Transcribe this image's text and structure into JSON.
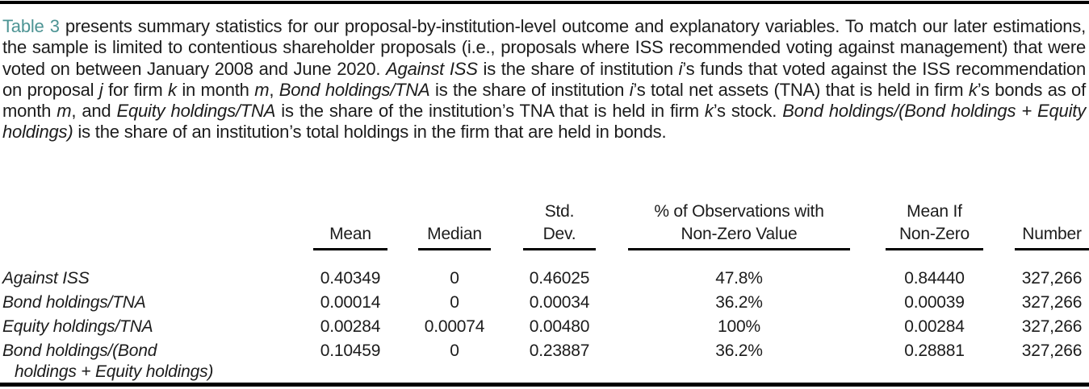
{
  "colors": {
    "reference_teal": "#4d9494",
    "body_text": "#1c1c1c",
    "rule_black": "#000000"
  },
  "caption": {
    "segments": [
      {
        "text": "Table 3",
        "style": "ref",
        "name": "table-3-reference",
        "interactable": true
      },
      {
        "text": " presents summary statistics for our proposal-by-institution-level outcome and explanatory variables. To match our later estimations, the sample is limited to contentious shareholder proposals (i.e., proposals where ISS recommended voting against management) that were voted on between January 2008 and June 2020. "
      },
      {
        "text": "Against ISS",
        "style": "italic"
      },
      {
        "text": " is the share of institution "
      },
      {
        "text": "i",
        "style": "italic"
      },
      {
        "text": "’s funds that voted against the ISS recommendation on proposal "
      },
      {
        "text": "j",
        "style": "italic"
      },
      {
        "text": " for firm "
      },
      {
        "text": "k",
        "style": "italic"
      },
      {
        "text": " in month "
      },
      {
        "text": "m",
        "style": "italic"
      },
      {
        "text": ", "
      },
      {
        "text": "Bond holdings/TNA",
        "style": "italic"
      },
      {
        "text": " is the share of institution "
      },
      {
        "text": "i",
        "style": "italic"
      },
      {
        "text": "’s total net assets (TNA) that is held in firm "
      },
      {
        "text": "k",
        "style": "italic"
      },
      {
        "text": "’s bonds as of month "
      },
      {
        "text": "m",
        "style": "italic"
      },
      {
        "text": ", and "
      },
      {
        "text": "Equity holdings/TNA",
        "style": "italic"
      },
      {
        "text": " is the share of the institution’s TNA that is held in firm "
      },
      {
        "text": "k",
        "style": "italic"
      },
      {
        "text": "’s stock. "
      },
      {
        "text": "Bond holdings/(Bond holdings + Equity holdings)",
        "style": "italic"
      },
      {
        "text": " is the share of an institution’s total holdings in the firm that are held in bonds."
      }
    ]
  },
  "table": {
    "columns": [
      {
        "id": "mean",
        "lines": [
          "Mean"
        ]
      },
      {
        "id": "median",
        "lines": [
          "Median"
        ]
      },
      {
        "id": "std-dev",
        "lines": [
          "Std.",
          "Dev."
        ]
      },
      {
        "id": "pct-observations-nonzero",
        "lines": [
          "% of Observations with",
          "Non-Zero Value"
        ]
      },
      {
        "id": "mean-if-nonzero",
        "lines": [
          "Mean If",
          "Non-Zero"
        ]
      },
      {
        "id": "number",
        "lines": [
          "Number"
        ]
      }
    ],
    "rows": [
      {
        "label_lines": [
          "Against ISS"
        ],
        "values": [
          "0.40349",
          "0",
          "0.46025",
          "47.8%",
          "0.84440",
          "327,266"
        ]
      },
      {
        "label_lines": [
          "Bond holdings/TNA"
        ],
        "values": [
          "0.00014",
          "0",
          "0.00034",
          "36.2%",
          "0.00039",
          "327,266"
        ]
      },
      {
        "label_lines": [
          "Equity holdings/TNA"
        ],
        "values": [
          "0.00284",
          "0.00074",
          "0.00480",
          "100%",
          "0.00284",
          "327,266"
        ]
      },
      {
        "label_lines": [
          "Bond holdings/(Bond",
          "holdings + Equity holdings)"
        ],
        "values": [
          "0.10459",
          "0",
          "0.23887",
          "36.2%",
          "0.28881",
          "327,266"
        ]
      }
    ]
  }
}
